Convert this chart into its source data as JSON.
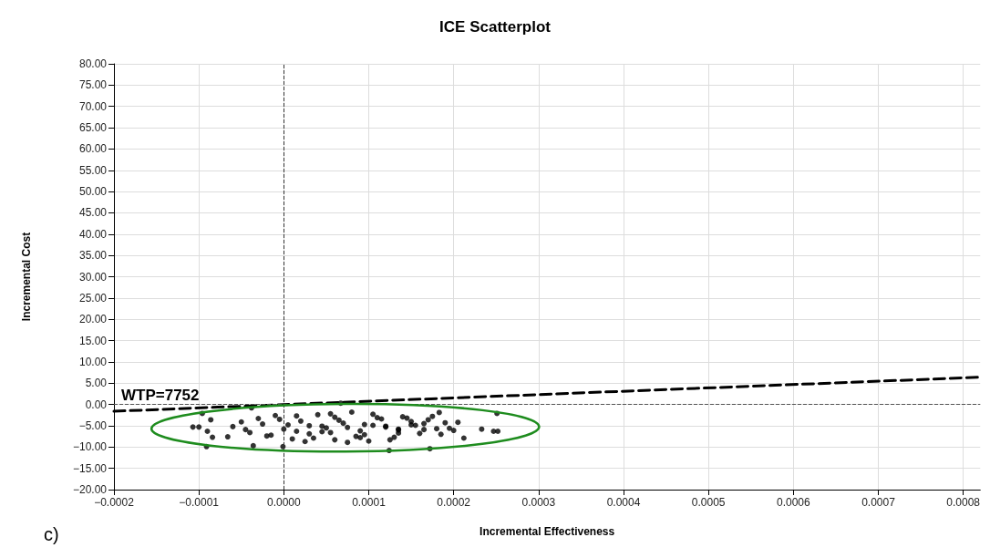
{
  "chart_data": {
    "type": "scatter",
    "title": "ICE Scatterplot",
    "xlabel": "Incremental Effectiveness",
    "ylabel": "Incremental Cost",
    "annotations": [
      "c)"
    ],
    "xlim": [
      -0.0002,
      0.00082
    ],
    "xticks": [
      {
        "value": -0.0002,
        "label": "−0.0002"
      },
      {
        "value": -0.0001,
        "label": "−0.0001"
      },
      {
        "value": 0,
        "label": "0.0000"
      },
      {
        "value": 0.0001,
        "label": "0.0001"
      },
      {
        "value": 0.0002,
        "label": "0.0002"
      },
      {
        "value": 0.0003,
        "label": "0.0003"
      },
      {
        "value": 0.0004,
        "label": "0.0004"
      },
      {
        "value": 0.0005,
        "label": "0.0005"
      },
      {
        "value": 0.0006,
        "label": "0.0006"
      },
      {
        "value": 0.0007,
        "label": "0.0007"
      },
      {
        "value": 0.0008,
        "label": "0.0008"
      }
    ],
    "ylim": [
      -20,
      80
    ],
    "yticks": [
      {
        "value": -20,
        "label": "−20.00"
      },
      {
        "value": -15,
        "label": "−15.00"
      },
      {
        "value": -10,
        "label": "−10.00"
      },
      {
        "value": -5,
        "label": "−5.00"
      },
      {
        "value": 0,
        "label": "0.00"
      },
      {
        "value": 5,
        "label": "5.00"
      },
      {
        "value": 10,
        "label": "10.00"
      },
      {
        "value": 15,
        "label": "15.00"
      },
      {
        "value": 20,
        "label": "20.00"
      },
      {
        "value": 25,
        "label": "25.00"
      },
      {
        "value": 30,
        "label": "30.00"
      },
      {
        "value": 35,
        "label": "35.00"
      },
      {
        "value": 40,
        "label": "40.00"
      },
      {
        "value": 45,
        "label": "45.00"
      },
      {
        "value": 50,
        "label": "50.00"
      },
      {
        "value": 55,
        "label": "55.00"
      },
      {
        "value": 60,
        "label": "60.00"
      },
      {
        "value": 65,
        "label": "65.00"
      },
      {
        "value": 70,
        "label": "70.00"
      },
      {
        "value": 75,
        "label": "75.00"
      },
      {
        "value": 80,
        "label": "80.00"
      }
    ],
    "grid": true,
    "legend": false,
    "ref_lines": [
      {
        "axis": "x",
        "value": 0,
        "color": "#333333",
        "line_style": "dashed"
      },
      {
        "axis": "y",
        "value": 0,
        "color": "#555555",
        "line_style": "dashed"
      }
    ],
    "series": [
      {
        "color": "#000000",
        "marker": "circle",
        "x": [
          -0.000107,
          -0.0001,
          -9.1e-05,
          -9.6e-05,
          -8.4e-05,
          -9e-05,
          -8.6e-05,
          -6.6e-05,
          -3.6e-05,
          -3.8e-05,
          -1e-06,
          6.7e-05,
          0.000172,
          0.000124,
          0.000251,
          0.000247,
          0.000252,
          0.000233,
          0.000212,
          0.000183,
          -6e-05,
          -5e-05,
          -4e-05,
          -3e-05,
          -2e-05,
          -1e-05,
          0,
          1e-05,
          2e-05,
          3e-05,
          4e-05,
          5e-05,
          6e-05,
          7e-05,
          8e-05,
          9e-05,
          0.0001,
          0.00011,
          0.00012,
          0.00013,
          0.00014,
          0.00015,
          0.00016,
          0.00017,
          0.00018,
          0.00019,
          0.0002,
          -4.5e-05,
          -2.5e-05,
          -5e-06,
          1.5e-05,
          3.5e-05,
          5.5e-05,
          7.5e-05,
          9.5e-05,
          0.000115,
          0.000135,
          0.000155,
          0.000175,
          0.000195,
          0.000205,
          -1.5e-05,
          5e-06,
          2.5e-05,
          4.5e-05,
          6.5e-05,
          8.5e-05,
          0.000105,
          0.000125,
          0.000145,
          0.000165,
          0.000185,
          1.5e-05,
          4.5e-05,
          7.5e-05,
          0.000105,
          0.000135,
          0.000165,
          3e-05,
          6e-05,
          9e-05,
          0.00012,
          0.00015,
          5.5e-05,
          9.5e-05,
          0.000135
        ],
        "values": [
          -5.3,
          -5.3,
          -9.9,
          -2.1,
          -7.7,
          -6.3,
          -3.6,
          -7.6,
          -9.7,
          -0.8,
          -9.9,
          0.3,
          -10.4,
          -10.8,
          -2.1,
          -6.3,
          -6.3,
          -5.8,
          -7.9,
          -1.9,
          -5.2,
          -4.1,
          -6.6,
          -3.3,
          -7.4,
          -2.6,
          -5.8,
          -8.1,
          -3.9,
          -6.9,
          -2.4,
          -5.5,
          -8.3,
          -4.4,
          -1.8,
          -6.2,
          -8.6,
          -3.1,
          -5.1,
          -7.7,
          -2.9,
          -4.8,
          -6.8,
          -3.6,
          -5.7,
          -4.3,
          -6.1,
          -5.9,
          -4.6,
          -3.5,
          -6.3,
          -7.9,
          -2.2,
          -5.4,
          -7.1,
          -3.4,
          -6.7,
          -4.9,
          -2.8,
          -5.6,
          -4.2,
          -7.2,
          -4.8,
          -8.7,
          -5.1,
          -3.7,
          -7.5,
          -4.9,
          -8.3,
          -3.2,
          -5.9,
          -7.0,
          -2.7,
          -6.4,
          -8.9,
          -2.3,
          -6.0,
          -4.5,
          -5.0,
          -3.0,
          -7.8,
          -5.3,
          -4.0,
          -6.6,
          -4.7,
          -5.8
        ]
      },
      {
        "type": "line",
        "color": "#000000",
        "name": "WTP=7752",
        "line_style": "dashed",
        "marker": "none",
        "x": [
          -0.0002,
          0.00082
        ],
        "values": [
          -1.6,
          6.4
        ]
      }
    ]
  }
}
